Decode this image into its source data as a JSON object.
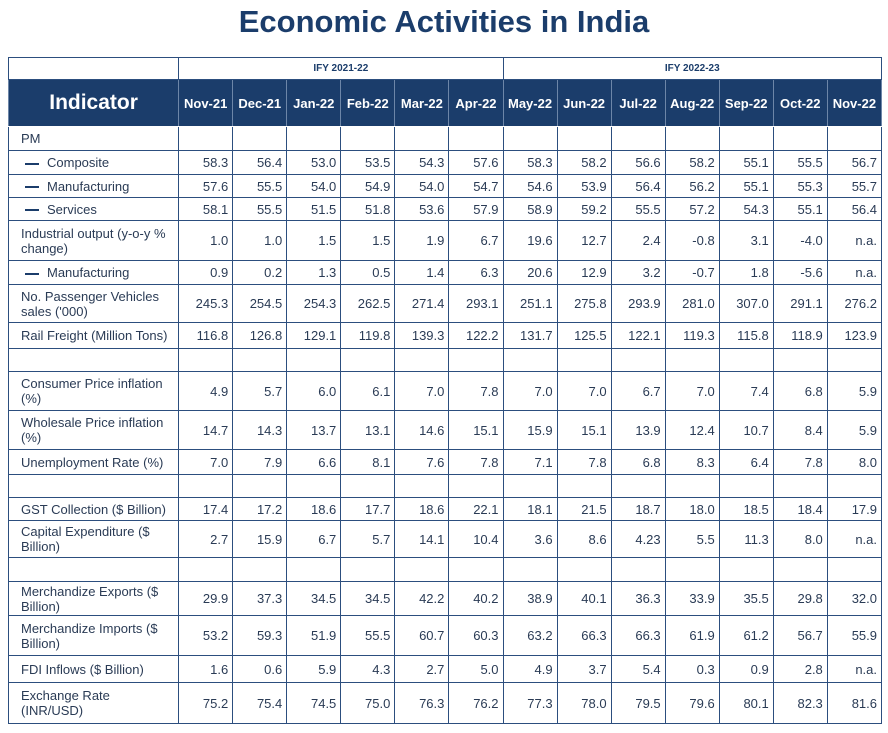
{
  "title": "Economic Activities in India",
  "fiscal_years": [
    "IFY 2021-22",
    "IFY 2022-23"
  ],
  "indicator_header": "Indicator",
  "months": [
    "Nov-21",
    "Dec-21",
    "Jan-22",
    "Feb-22",
    "Mar-22",
    "Apr-22",
    "May-22",
    "Jun-22",
    "Jul-22",
    "Aug-22",
    "Sep-22",
    "Oct-22",
    "Nov-22"
  ],
  "rows": [
    {
      "label": "PM",
      "sub": false,
      "values": [
        "",
        "",
        "",
        "",
        "",
        "",
        "",
        "",
        "",
        "",
        "",
        "",
        ""
      ]
    },
    {
      "label": "Composite",
      "sub": true,
      "values": [
        "58.3",
        "56.4",
        "53.0",
        "53.5",
        "54.3",
        "57.6",
        "58.3",
        "58.2",
        "56.6",
        "58.2",
        "55.1",
        "55.5",
        "56.7"
      ]
    },
    {
      "label": "Manufacturing",
      "sub": true,
      "values": [
        "57.6",
        "55.5",
        "54.0",
        "54.9",
        "54.0",
        "54.7",
        "54.6",
        "53.9",
        "56.4",
        "56.2",
        "55.1",
        "55.3",
        "55.7"
      ]
    },
    {
      "label": "Services",
      "sub": true,
      "values": [
        "58.1",
        "55.5",
        "51.5",
        "51.8",
        "53.6",
        "57.9",
        "58.9",
        "59.2",
        "55.5",
        "57.2",
        "54.3",
        "55.1",
        "56.4"
      ]
    },
    {
      "label": "Industrial output (y-o-y % change)",
      "sub": false,
      "values": [
        "1.0",
        "1.0",
        "1.5",
        "1.5",
        "1.9",
        "6.7",
        "19.6",
        "12.7",
        "2.4",
        "-0.8",
        "3.1",
        "-4.0",
        "n.a."
      ]
    },
    {
      "label": "Manufacturing",
      "sub": true,
      "values": [
        "0.9",
        "0.2",
        "1.3",
        "0.5",
        "1.4",
        "6.3",
        "20.6",
        "12.9",
        "3.2",
        "-0.7",
        "1.8",
        "-5.6",
        "n.a."
      ]
    },
    {
      "label": "No. Passenger Vehicles sales ('000)",
      "sub": false,
      "values": [
        "245.3",
        "254.5",
        "254.3",
        "262.5",
        "271.4",
        "293.1",
        "251.1",
        "275.8",
        "293.9",
        "281.0",
        "307.0",
        "291.1",
        "276.2"
      ]
    },
    {
      "label": "Rail Freight (Million Tons)",
      "sub": false,
      "values": [
        "116.8",
        "126.8",
        "129.1",
        "119.8",
        "139.3",
        "122.2",
        "131.7",
        "125.5",
        "122.1",
        "119.3",
        "115.8",
        "118.9",
        "123.9"
      ]
    },
    {
      "label": "",
      "sub": false,
      "values": [
        "",
        "",
        "",
        "",
        "",
        "",
        "",
        "",
        "",
        "",
        "",
        "",
        ""
      ]
    },
    {
      "label": "Consumer Price inflation (%)",
      "sub": false,
      "values": [
        "4.9",
        "5.7",
        "6.0",
        "6.1",
        "7.0",
        "7.8",
        "7.0",
        "7.0",
        "6.7",
        "7.0",
        "7.4",
        "6.8",
        "5.9"
      ]
    },
    {
      "label": "Wholesale Price inflation (%)",
      "sub": false,
      "values": [
        "14.7",
        "14.3",
        "13.7",
        "13.1",
        "14.6",
        "15.1",
        "15.9",
        "15.1",
        "13.9",
        "12.4",
        "10.7",
        "8.4",
        "5.9"
      ]
    },
    {
      "label": "Unemployment Rate (%)",
      "sub": false,
      "values": [
        "7.0",
        "7.9",
        "6.6",
        "8.1",
        "7.6",
        "7.8",
        "7.1",
        "7.8",
        "6.8",
        "8.3",
        "6.4",
        "7.8",
        "8.0"
      ]
    },
    {
      "label": "",
      "sub": false,
      "values": [
        "",
        "",
        "",
        "",
        "",
        "",
        "",
        "",
        "",
        "",
        "",
        "",
        ""
      ]
    },
    {
      "label": "GST Collection ($ Billion)",
      "sub": false,
      "values": [
        "17.4",
        "17.2",
        "18.6",
        "17.7",
        "18.6",
        "22.1",
        "18.1",
        "21.5",
        "18.7",
        "18.0",
        "18.5",
        "18.4",
        "17.9"
      ]
    },
    {
      "label": "Capital Expenditure ($ Billion)",
      "sub": false,
      "values": [
        "2.7",
        "15.9",
        "6.7",
        "5.7",
        "14.1",
        "10.4",
        "3.6",
        "8.6",
        "4.23",
        "5.5",
        "11.3",
        "8.0",
        "n.a."
      ]
    },
    {
      "label": "",
      "sub": false,
      "values": [
        "",
        "",
        "",
        "",
        "",
        "",
        "",
        "",
        "",
        "",
        "",
        "",
        ""
      ]
    },
    {
      "label": "Merchandize Exports ($ Billion)",
      "sub": false,
      "values": [
        "29.9",
        "37.3",
        "34.5",
        "34.5",
        "42.2",
        "40.2",
        "38.9",
        "40.1",
        "36.3",
        "33.9",
        "35.5",
        "29.8",
        "32.0"
      ]
    },
    {
      "label": "Merchandize Imports ($ Billion)",
      "sub": false,
      "values": [
        "53.2",
        "59.3",
        "51.9",
        "55.5",
        "60.7",
        "60.3",
        "63.2",
        "66.3",
        "66.3",
        "61.9",
        "61.2",
        "56.7",
        "55.9"
      ]
    },
    {
      "label": "FDI Inflows ($ Billion)",
      "sub": false,
      "values": [
        "1.6",
        "0.6",
        "5.9",
        "4.3",
        "2.7",
        "5.0",
        "4.9",
        "3.7",
        "5.4",
        "0.3",
        "0.9",
        "2.8",
        "n.a."
      ]
    },
    {
      "label": "Exchange Rate (INR/USD)",
      "sub": false,
      "values": [
        "75.2",
        "75.4",
        "74.5",
        "75.0",
        "76.3",
        "76.2",
        "77.3",
        "78.0",
        "79.5",
        "79.6",
        "80.1",
        "82.3",
        "81.6"
      ]
    }
  ],
  "colors": {
    "header_bg": "#1b3d6b",
    "border": "#2c4e7e",
    "title": "#1b3d6b"
  }
}
